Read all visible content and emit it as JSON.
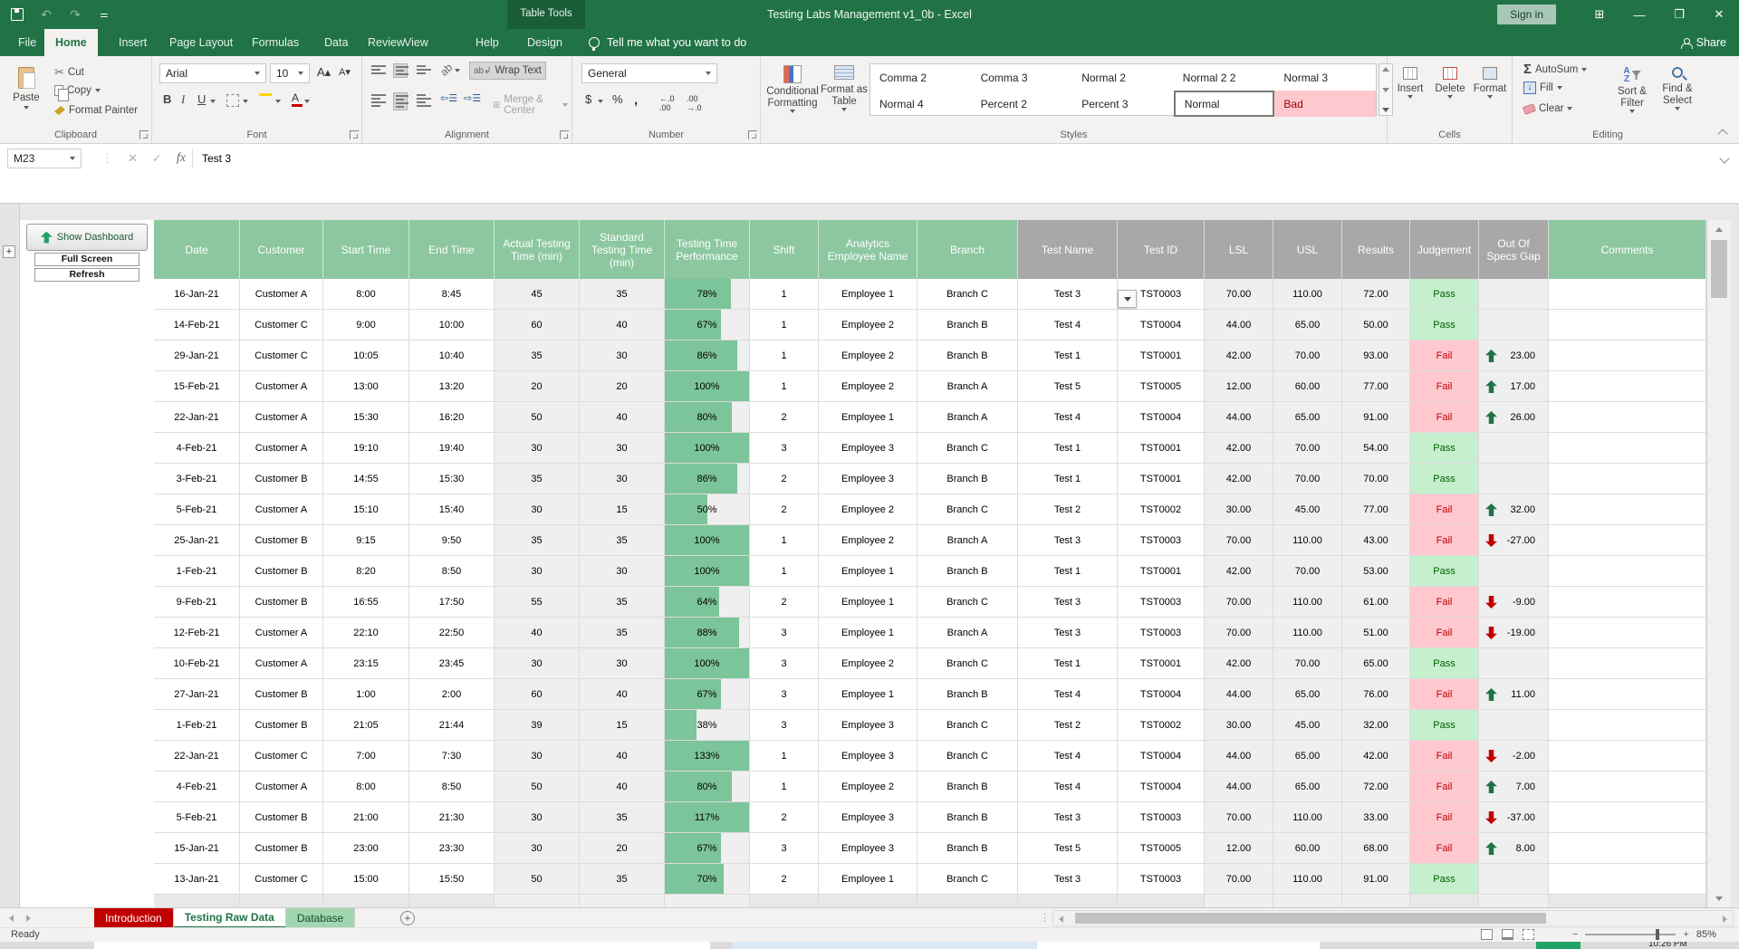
{
  "titlebar": {
    "title": "Testing Labs Management v1_0b - Excel",
    "sign_in": "Sign in",
    "context_label": "Table Tools"
  },
  "ribbon": {
    "tabs": [
      {
        "label": "File"
      },
      {
        "label": "Home",
        "active": true
      },
      {
        "label": "Insert"
      },
      {
        "label": "Page Layout"
      },
      {
        "label": "Formulas"
      },
      {
        "label": "Data"
      },
      {
        "label": "Review"
      },
      {
        "label": "View"
      },
      {
        "label": "Help"
      },
      {
        "label": "Design",
        "contextual": true
      }
    ],
    "tell_me": "Tell me what you want to do",
    "share_label": "Share",
    "clipboard": {
      "label": "Clipboard",
      "paste": "Paste",
      "cut": "Cut",
      "copy": "Copy",
      "format_painter": "Format Painter"
    },
    "font": {
      "label": "Font",
      "family": "Arial",
      "size": "10",
      "bold": "B",
      "italic": "I",
      "underline": "U"
    },
    "alignment": {
      "label": "Alignment",
      "wrap_text": "Wrap Text",
      "merge_center": "Merge & Center"
    },
    "number": {
      "label": "Number",
      "format": "General",
      "currency": "$",
      "percent": "%",
      "comma": ","
    },
    "styles": {
      "label": "Styles",
      "conditional_formatting": "Conditional Formatting",
      "format_as_table": "Format as Table",
      "gallery": [
        {
          "label": "Comma 2",
          "kind": "normal"
        },
        {
          "label": "Comma 3",
          "kind": "normal"
        },
        {
          "label": "Normal 2",
          "kind": "normal"
        },
        {
          "label": "Normal 2 2",
          "kind": "normal"
        },
        {
          "label": "Normal 3",
          "kind": "normal"
        },
        {
          "label": "Normal 4",
          "kind": "normal"
        },
        {
          "label": "Percent 2",
          "kind": "normal"
        },
        {
          "label": "Percent 3",
          "kind": "normal"
        },
        {
          "label": "Normal",
          "kind": "selected"
        },
        {
          "label": "Bad",
          "kind": "bad"
        }
      ]
    },
    "cells": {
      "label": "Cells",
      "insert": "Insert",
      "delete": "Delete",
      "format": "Format"
    },
    "editing": {
      "label": "Editing",
      "autosum": "AutoSum",
      "fill": "Fill",
      "clear": "Clear",
      "sort_filter": "Sort & Filter",
      "find_select": "Find & Select"
    }
  },
  "formula_bar": {
    "name_box": "M23",
    "formula": "Test 3"
  },
  "left_pane": {
    "dashboard": "Show Dashboard",
    "full_screen": "Full Screen",
    "refresh": "Refresh"
  },
  "table": {
    "headers": [
      {
        "label": "Date",
        "tone": "green"
      },
      {
        "label": "Customer",
        "tone": "green"
      },
      {
        "label": "Start Time",
        "tone": "green"
      },
      {
        "label": "End Time",
        "tone": "green"
      },
      {
        "label": "Actual Testing Time (min)",
        "tone": "green"
      },
      {
        "label": "Standard Testing Time (min)",
        "tone": "green"
      },
      {
        "label": "Testing Time Performance",
        "tone": "green"
      },
      {
        "label": "Shift",
        "tone": "green"
      },
      {
        "label": "Analytics Employee Name",
        "tone": "green"
      },
      {
        "label": "Branch",
        "tone": "green"
      },
      {
        "label": "Test Name",
        "tone": "gray"
      },
      {
        "label": "Test ID",
        "tone": "gray"
      },
      {
        "label": "LSL",
        "tone": "gray"
      },
      {
        "label": "USL",
        "tone": "gray"
      },
      {
        "label": "Results",
        "tone": "gray"
      },
      {
        "label": "Judgement",
        "tone": "gray"
      },
      {
        "label": "Out Of Specs Gap",
        "tone": "gray"
      },
      {
        "label": "Comments",
        "tone": "green"
      }
    ],
    "rows": [
      {
        "date": "16-Jan-21",
        "customer": "Customer A",
        "start": "8:00",
        "end": "8:45",
        "actual": "45",
        "standard": "35",
        "perf": "78%",
        "shift": "1",
        "employee": "Employee 1",
        "branch": "Branch C",
        "test": "Test 3",
        "test_id": "TST0003",
        "lsl": "70.00",
        "usl": "110.00",
        "results": "72.00",
        "judgement": "Pass",
        "gap": ""
      },
      {
        "date": "14-Feb-21",
        "customer": "Customer C",
        "start": "9:00",
        "end": "10:00",
        "actual": "60",
        "standard": "40",
        "perf": "67%",
        "shift": "1",
        "employee": "Employee 2",
        "branch": "Branch B",
        "test": "Test 4",
        "test_id": "TST0004",
        "lsl": "44.00",
        "usl": "65.00",
        "results": "50.00",
        "judgement": "Pass",
        "gap": ""
      },
      {
        "date": "29-Jan-21",
        "customer": "Customer C",
        "start": "10:05",
        "end": "10:40",
        "actual": "35",
        "standard": "30",
        "perf": "86%",
        "shift": "1",
        "employee": "Employee 2",
        "branch": "Branch B",
        "test": "Test 1",
        "test_id": "TST0001",
        "lsl": "42.00",
        "usl": "70.00",
        "results": "93.00",
        "judgement": "Fail",
        "gap": "23.00"
      },
      {
        "date": "15-Feb-21",
        "customer": "Customer A",
        "start": "13:00",
        "end": "13:20",
        "actual": "20",
        "standard": "20",
        "perf": "100%",
        "shift": "1",
        "employee": "Employee 2",
        "branch": "Branch A",
        "test": "Test 5",
        "test_id": "TST0005",
        "lsl": "12.00",
        "usl": "60.00",
        "results": "77.00",
        "judgement": "Fail",
        "gap": "17.00"
      },
      {
        "date": "22-Jan-21",
        "customer": "Customer A",
        "start": "15:30",
        "end": "16:20",
        "actual": "50",
        "standard": "40",
        "perf": "80%",
        "shift": "2",
        "employee": "Employee 1",
        "branch": "Branch A",
        "test": "Test 4",
        "test_id": "TST0004",
        "lsl": "44.00",
        "usl": "65.00",
        "results": "91.00",
        "judgement": "Fail",
        "gap": "26.00"
      },
      {
        "date": "4-Feb-21",
        "customer": "Customer A",
        "start": "19:10",
        "end": "19:40",
        "actual": "30",
        "standard": "30",
        "perf": "100%",
        "shift": "3",
        "employee": "Employee 3",
        "branch": "Branch C",
        "test": "Test 1",
        "test_id": "TST0001",
        "lsl": "42.00",
        "usl": "70.00",
        "results": "54.00",
        "judgement": "Pass",
        "gap": ""
      },
      {
        "date": "3-Feb-21",
        "customer": "Customer B",
        "start": "14:55",
        "end": "15:30",
        "actual": "35",
        "standard": "30",
        "perf": "86%",
        "shift": "2",
        "employee": "Employee 3",
        "branch": "Branch B",
        "test": "Test 1",
        "test_id": "TST0001",
        "lsl": "42.00",
        "usl": "70.00",
        "results": "70.00",
        "judgement": "Pass",
        "gap": ""
      },
      {
        "date": "5-Feb-21",
        "customer": "Customer A",
        "start": "15:10",
        "end": "15:40",
        "actual": "30",
        "standard": "15",
        "perf": "50%",
        "shift": "2",
        "employee": "Employee 2",
        "branch": "Branch C",
        "test": "Test 2",
        "test_id": "TST0002",
        "lsl": "30.00",
        "usl": "45.00",
        "results": "77.00",
        "judgement": "Fail",
        "gap": "32.00"
      },
      {
        "date": "25-Jan-21",
        "customer": "Customer B",
        "start": "9:15",
        "end": "9:50",
        "actual": "35",
        "standard": "35",
        "perf": "100%",
        "shift": "1",
        "employee": "Employee 2",
        "branch": "Branch A",
        "test": "Test 3",
        "test_id": "TST0003",
        "lsl": "70.00",
        "usl": "110.00",
        "results": "43.00",
        "judgement": "Fail",
        "gap": "-27.00"
      },
      {
        "date": "1-Feb-21",
        "customer": "Customer B",
        "start": "8:20",
        "end": "8:50",
        "actual": "30",
        "standard": "30",
        "perf": "100%",
        "shift": "1",
        "employee": "Employee 1",
        "branch": "Branch B",
        "test": "Test 1",
        "test_id": "TST0001",
        "lsl": "42.00",
        "usl": "70.00",
        "results": "53.00",
        "judgement": "Pass",
        "gap": ""
      },
      {
        "date": "9-Feb-21",
        "customer": "Customer B",
        "start": "16:55",
        "end": "17:50",
        "actual": "55",
        "standard": "35",
        "perf": "64%",
        "shift": "2",
        "employee": "Employee 1",
        "branch": "Branch C",
        "test": "Test 3",
        "test_id": "TST0003",
        "lsl": "70.00",
        "usl": "110.00",
        "results": "61.00",
        "judgement": "Fail",
        "gap": "-9.00"
      },
      {
        "date": "12-Feb-21",
        "customer": "Customer A",
        "start": "22:10",
        "end": "22:50",
        "actual": "40",
        "standard": "35",
        "perf": "88%",
        "shift": "3",
        "employee": "Employee 1",
        "branch": "Branch A",
        "test": "Test 3",
        "test_id": "TST0003",
        "lsl": "70.00",
        "usl": "110.00",
        "results": "51.00",
        "judgement": "Fail",
        "gap": "-19.00"
      },
      {
        "date": "10-Feb-21",
        "customer": "Customer A",
        "start": "23:15",
        "end": "23:45",
        "actual": "30",
        "standard": "30",
        "perf": "100%",
        "shift": "3",
        "employee": "Employee 2",
        "branch": "Branch C",
        "test": "Test 1",
        "test_id": "TST0001",
        "lsl": "42.00",
        "usl": "70.00",
        "results": "65.00",
        "judgement": "Pass",
        "gap": ""
      },
      {
        "date": "27-Jan-21",
        "customer": "Customer B",
        "start": "1:00",
        "end": "2:00",
        "actual": "60",
        "standard": "40",
        "perf": "67%",
        "shift": "3",
        "employee": "Employee 1",
        "branch": "Branch B",
        "test": "Test 4",
        "test_id": "TST0004",
        "lsl": "44.00",
        "usl": "65.00",
        "results": "76.00",
        "judgement": "Fail",
        "gap": "11.00"
      },
      {
        "date": "1-Feb-21",
        "customer": "Customer B",
        "start": "21:05",
        "end": "21:44",
        "actual": "39",
        "standard": "15",
        "perf": "38%",
        "shift": "3",
        "employee": "Employee 3",
        "branch": "Branch C",
        "test": "Test 2",
        "test_id": "TST0002",
        "lsl": "30.00",
        "usl": "45.00",
        "results": "32.00",
        "judgement": "Pass",
        "gap": ""
      },
      {
        "date": "22-Jan-21",
        "customer": "Customer C",
        "start": "7:00",
        "end": "7:30",
        "actual": "30",
        "standard": "40",
        "perf": "133%",
        "shift": "1",
        "employee": "Employee 3",
        "branch": "Branch C",
        "test": "Test 4",
        "test_id": "TST0004",
        "lsl": "44.00",
        "usl": "65.00",
        "results": "42.00",
        "judgement": "Fail",
        "gap": "-2.00"
      },
      {
        "date": "4-Feb-21",
        "customer": "Customer A",
        "start": "8:00",
        "end": "8:50",
        "actual": "50",
        "standard": "40",
        "perf": "80%",
        "shift": "1",
        "employee": "Employee 2",
        "branch": "Branch B",
        "test": "Test 4",
        "test_id": "TST0004",
        "lsl": "44.00",
        "usl": "65.00",
        "results": "72.00",
        "judgement": "Fail",
        "gap": "7.00"
      },
      {
        "date": "5-Feb-21",
        "customer": "Customer B",
        "start": "21:00",
        "end": "21:30",
        "actual": "30",
        "standard": "35",
        "perf": "117%",
        "shift": "2",
        "employee": "Employee 3",
        "branch": "Branch B",
        "test": "Test 3",
        "test_id": "TST0003",
        "lsl": "70.00",
        "usl": "110.00",
        "results": "33.00",
        "judgement": "Fail",
        "gap": "-37.00"
      },
      {
        "date": "15-Jan-21",
        "customer": "Customer B",
        "start": "23:00",
        "end": "23:30",
        "actual": "30",
        "standard": "20",
        "perf": "67%",
        "shift": "3",
        "employee": "Employee 3",
        "branch": "Branch B",
        "test": "Test 5",
        "test_id": "TST0005",
        "lsl": "12.00",
        "usl": "60.00",
        "results": "68.00",
        "judgement": "Fail",
        "gap": "8.00"
      },
      {
        "date": "13-Jan-21",
        "customer": "Customer C",
        "start": "15:00",
        "end": "15:50",
        "actual": "50",
        "standard": "35",
        "perf": "70%",
        "shift": "2",
        "employee": "Employee 1",
        "branch": "Branch C",
        "test": "Test 3",
        "test_id": "TST0003",
        "lsl": "70.00",
        "usl": "110.00",
        "results": "91.00",
        "judgement": "Pass",
        "gap": ""
      }
    ]
  },
  "sheet_tabs": [
    {
      "label": "Introduction",
      "kind": "red"
    },
    {
      "label": "Testing Raw Data",
      "kind": "active"
    },
    {
      "label": "Database",
      "kind": "green"
    }
  ],
  "status_bar": {
    "ready": "Ready",
    "zoom": "85%"
  },
  "taskbar": {
    "clock": "10:26 PM"
  }
}
